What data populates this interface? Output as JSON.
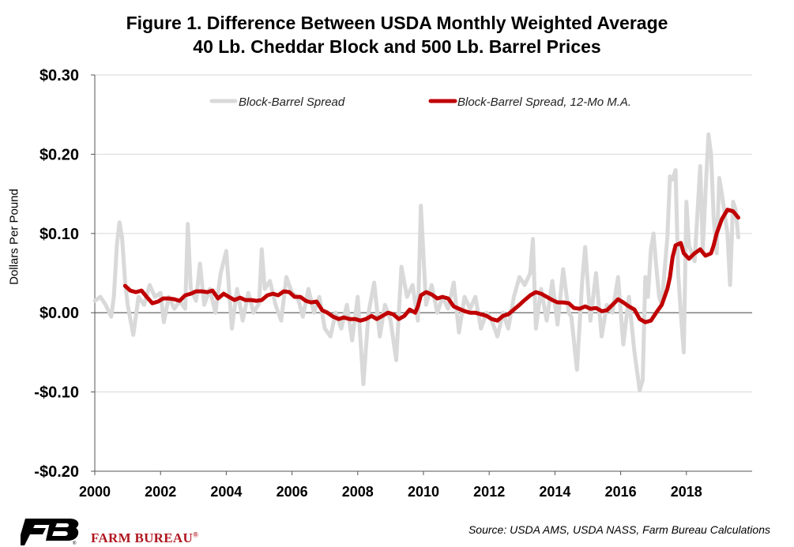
{
  "chart_data": {
    "type": "line",
    "title": [
      "Figure 1. Difference Between USDA Monthly Weighted Average",
      "40 Lb. Cheddar Block and 500 Lb. Barrel Prices"
    ],
    "ylabel": "Dollars Per Pound",
    "xlabel": "",
    "ylim": [
      -0.2,
      0.3
    ],
    "xlim": [
      2000,
      2020
    ],
    "y_ticks": [
      {
        "value": 0.3,
        "label": "$0.30"
      },
      {
        "value": 0.2,
        "label": "$0.20"
      },
      {
        "value": 0.1,
        "label": "$0.10"
      },
      {
        "value": 0.0,
        "label": "$0.00"
      },
      {
        "value": -0.1,
        "label": "-$0.10"
      },
      {
        "value": -0.2,
        "label": "-$0.20"
      }
    ],
    "x_ticks": [
      {
        "value": 2000,
        "label": "2000"
      },
      {
        "value": 2002,
        "label": "2002"
      },
      {
        "value": 2004,
        "label": "2004"
      },
      {
        "value": 2006,
        "label": "2006"
      },
      {
        "value": 2008,
        "label": "2008"
      },
      {
        "value": 2010,
        "label": "2010"
      },
      {
        "value": 2012,
        "label": "2012"
      },
      {
        "value": 2014,
        "label": "2014"
      },
      {
        "value": 2016,
        "label": "2016"
      },
      {
        "value": 2018,
        "label": "2018"
      }
    ],
    "grid": "horizontal",
    "legend_position": "top",
    "series": [
      {
        "name": "Block-Barrel Spread",
        "color": "#d9d9d9",
        "points": [
          [
            2000.0,
            0.015
          ],
          [
            2000.17,
            0.02
          ],
          [
            2000.33,
            0.01
          ],
          [
            2000.5,
            -0.005
          ],
          [
            2000.58,
            0.02
          ],
          [
            2000.67,
            0.085
          ],
          [
            2000.75,
            0.114
          ],
          [
            2000.83,
            0.095
          ],
          [
            2000.92,
            0.04
          ],
          [
            2001.0,
            0.01
          ],
          [
            2001.17,
            -0.028
          ],
          [
            2001.33,
            0.02
          ],
          [
            2001.5,
            0.01
          ],
          [
            2001.67,
            0.035
          ],
          [
            2001.83,
            0.02
          ],
          [
            2002.0,
            0.025
          ],
          [
            2002.1,
            -0.012
          ],
          [
            2002.25,
            0.02
          ],
          [
            2002.42,
            0.005
          ],
          [
            2002.58,
            0.015
          ],
          [
            2002.75,
            0.005
          ],
          [
            2002.83,
            0.112
          ],
          [
            2002.92,
            0.03
          ],
          [
            2003.08,
            0.015
          ],
          [
            2003.2,
            0.062
          ],
          [
            2003.33,
            0.01
          ],
          [
            2003.5,
            0.03
          ],
          [
            2003.67,
            0.0
          ],
          [
            2003.83,
            0.05
          ],
          [
            2004.0,
            0.078
          ],
          [
            2004.17,
            -0.02
          ],
          [
            2004.33,
            0.03
          ],
          [
            2004.5,
            -0.01
          ],
          [
            2004.67,
            0.025
          ],
          [
            2004.83,
            0.0
          ],
          [
            2005.0,
            0.012
          ],
          [
            2005.08,
            0.08
          ],
          [
            2005.17,
            0.03
          ],
          [
            2005.33,
            0.04
          ],
          [
            2005.5,
            0.01
          ],
          [
            2005.67,
            -0.01
          ],
          [
            2005.83,
            0.045
          ],
          [
            2006.0,
            0.025
          ],
          [
            2006.17,
            0.02
          ],
          [
            2006.33,
            -0.005
          ],
          [
            2006.5,
            0.03
          ],
          [
            2006.67,
            0.0
          ],
          [
            2006.83,
            0.02
          ],
          [
            2007.0,
            -0.02
          ],
          [
            2007.17,
            -0.03
          ],
          [
            2007.33,
            0.0
          ],
          [
            2007.5,
            -0.02
          ],
          [
            2007.67,
            0.01
          ],
          [
            2007.83,
            -0.035
          ],
          [
            2008.0,
            0.02
          ],
          [
            2008.17,
            -0.09
          ],
          [
            2008.33,
            0.0
          ],
          [
            2008.5,
            0.038
          ],
          [
            2008.67,
            -0.03
          ],
          [
            2008.83,
            0.01
          ],
          [
            2009.0,
            -0.01
          ],
          [
            2009.17,
            -0.06
          ],
          [
            2009.33,
            0.058
          ],
          [
            2009.5,
            0.02
          ],
          [
            2009.67,
            0.035
          ],
          [
            2009.83,
            -0.01
          ],
          [
            2009.92,
            0.135
          ],
          [
            2010.08,
            0.01
          ],
          [
            2010.25,
            0.035
          ],
          [
            2010.42,
            0.0
          ],
          [
            2010.58,
            0.02
          ],
          [
            2010.75,
            0.005
          ],
          [
            2010.92,
            0.038
          ],
          [
            2011.08,
            -0.025
          ],
          [
            2011.25,
            0.02
          ],
          [
            2011.42,
            0.005
          ],
          [
            2011.58,
            0.02
          ],
          [
            2011.75,
            -0.02
          ],
          [
            2011.92,
            0.0
          ],
          [
            2012.08,
            -0.01
          ],
          [
            2012.25,
            -0.03
          ],
          [
            2012.42,
            0.0
          ],
          [
            2012.58,
            -0.02
          ],
          [
            2012.75,
            0.02
          ],
          [
            2012.92,
            0.045
          ],
          [
            2013.08,
            0.035
          ],
          [
            2013.25,
            0.05
          ],
          [
            2013.33,
            0.093
          ],
          [
            2013.42,
            -0.02
          ],
          [
            2013.58,
            0.03
          ],
          [
            2013.75,
            -0.01
          ],
          [
            2013.92,
            0.04
          ],
          [
            2014.08,
            -0.015
          ],
          [
            2014.25,
            0.055
          ],
          [
            2014.42,
            0.0
          ],
          [
            2014.5,
            -0.005
          ],
          [
            2014.67,
            -0.072
          ],
          [
            2014.83,
            0.04
          ],
          [
            2014.92,
            0.083
          ],
          [
            2015.08,
            -0.01
          ],
          [
            2015.25,
            0.05
          ],
          [
            2015.42,
            -0.03
          ],
          [
            2015.58,
            0.01
          ],
          [
            2015.75,
            0.0
          ],
          [
            2015.92,
            0.045
          ],
          [
            2016.08,
            -0.04
          ],
          [
            2016.25,
            0.02
          ],
          [
            2016.42,
            -0.05
          ],
          [
            2016.58,
            -0.098
          ],
          [
            2016.67,
            -0.085
          ],
          [
            2016.75,
            0.045
          ],
          [
            2016.83,
            0.02
          ],
          [
            2016.92,
            0.08
          ],
          [
            2017.0,
            0.1
          ],
          [
            2017.08,
            0.06
          ],
          [
            2017.17,
            0.02
          ],
          [
            2017.25,
            0.01
          ],
          [
            2017.42,
            0.095
          ],
          [
            2017.5,
            0.172
          ],
          [
            2017.58,
            0.168
          ],
          [
            2017.67,
            0.18
          ],
          [
            2017.75,
            0.05
          ],
          [
            2017.83,
            0.0
          ],
          [
            2017.92,
            -0.05
          ],
          [
            2018.0,
            0.14
          ],
          [
            2018.08,
            0.085
          ],
          [
            2018.25,
            0.065
          ],
          [
            2018.42,
            0.185
          ],
          [
            2018.5,
            0.08
          ],
          [
            2018.58,
            0.15
          ],
          [
            2018.67,
            0.225
          ],
          [
            2018.75,
            0.2
          ],
          [
            2018.83,
            0.12
          ],
          [
            2018.92,
            0.075
          ],
          [
            2019.0,
            0.17
          ],
          [
            2019.08,
            0.15
          ],
          [
            2019.25,
            0.1
          ],
          [
            2019.33,
            0.035
          ],
          [
            2019.42,
            0.14
          ],
          [
            2019.5,
            0.13
          ],
          [
            2019.58,
            0.095
          ]
        ]
      },
      {
        "name": "Block-Barrel Spread, 12-Mo M.A.",
        "color": "#c00000",
        "points": [
          [
            2000.92,
            0.034
          ],
          [
            2001.08,
            0.028
          ],
          [
            2001.25,
            0.026
          ],
          [
            2001.42,
            0.028
          ],
          [
            2001.58,
            0.02
          ],
          [
            2001.75,
            0.012
          ],
          [
            2001.92,
            0.014
          ],
          [
            2002.08,
            0.018
          ],
          [
            2002.25,
            0.018
          ],
          [
            2002.42,
            0.017
          ],
          [
            2002.58,
            0.015
          ],
          [
            2002.75,
            0.022
          ],
          [
            2002.92,
            0.024
          ],
          [
            2003.08,
            0.027
          ],
          [
            2003.25,
            0.027
          ],
          [
            2003.42,
            0.026
          ],
          [
            2003.58,
            0.028
          ],
          [
            2003.75,
            0.018
          ],
          [
            2003.92,
            0.024
          ],
          [
            2004.08,
            0.02
          ],
          [
            2004.25,
            0.016
          ],
          [
            2004.42,
            0.019
          ],
          [
            2004.58,
            0.016
          ],
          [
            2004.75,
            0.016
          ],
          [
            2004.92,
            0.015
          ],
          [
            2005.08,
            0.016
          ],
          [
            2005.25,
            0.022
          ],
          [
            2005.42,
            0.024
          ],
          [
            2005.58,
            0.022
          ],
          [
            2005.75,
            0.027
          ],
          [
            2005.92,
            0.026
          ],
          [
            2006.08,
            0.02
          ],
          [
            2006.25,
            0.02
          ],
          [
            2006.42,
            0.015
          ],
          [
            2006.58,
            0.013
          ],
          [
            2006.75,
            0.014
          ],
          [
            2006.92,
            0.003
          ],
          [
            2007.08,
            0.0
          ],
          [
            2007.25,
            -0.005
          ],
          [
            2007.42,
            -0.008
          ],
          [
            2007.58,
            -0.006
          ],
          [
            2007.75,
            -0.008
          ],
          [
            2007.92,
            -0.008
          ],
          [
            2008.08,
            -0.01
          ],
          [
            2008.25,
            -0.008
          ],
          [
            2008.42,
            -0.004
          ],
          [
            2008.58,
            -0.008
          ],
          [
            2008.75,
            -0.004
          ],
          [
            2008.92,
            0.0
          ],
          [
            2009.08,
            -0.002
          ],
          [
            2009.25,
            -0.008
          ],
          [
            2009.42,
            -0.004
          ],
          [
            2009.58,
            0.004
          ],
          [
            2009.75,
            0.0
          ],
          [
            2009.83,
            0.008
          ],
          [
            2009.92,
            0.022
          ],
          [
            2010.08,
            0.026
          ],
          [
            2010.25,
            0.023
          ],
          [
            2010.42,
            0.018
          ],
          [
            2010.58,
            0.02
          ],
          [
            2010.75,
            0.018
          ],
          [
            2010.92,
            0.008
          ],
          [
            2011.08,
            0.005
          ],
          [
            2011.25,
            0.002
          ],
          [
            2011.42,
            0.0
          ],
          [
            2011.58,
            0.0
          ],
          [
            2011.75,
            -0.002
          ],
          [
            2011.92,
            -0.004
          ],
          [
            2012.08,
            -0.008
          ],
          [
            2012.25,
            -0.01
          ],
          [
            2012.42,
            -0.004
          ],
          [
            2012.58,
            -0.002
          ],
          [
            2012.75,
            0.004
          ],
          [
            2012.92,
            0.01
          ],
          [
            2013.08,
            0.016
          ],
          [
            2013.25,
            0.022
          ],
          [
            2013.42,
            0.026
          ],
          [
            2013.58,
            0.024
          ],
          [
            2013.75,
            0.02
          ],
          [
            2013.92,
            0.016
          ],
          [
            2014.08,
            0.013
          ],
          [
            2014.25,
            0.013
          ],
          [
            2014.42,
            0.012
          ],
          [
            2014.58,
            0.006
          ],
          [
            2014.75,
            0.005
          ],
          [
            2014.92,
            0.008
          ],
          [
            2015.08,
            0.005
          ],
          [
            2015.25,
            0.006
          ],
          [
            2015.42,
            0.002
          ],
          [
            2015.58,
            0.003
          ],
          [
            2015.75,
            0.01
          ],
          [
            2015.92,
            0.017
          ],
          [
            2016.08,
            0.013
          ],
          [
            2016.25,
            0.008
          ],
          [
            2016.42,
            0.004
          ],
          [
            2016.58,
            -0.008
          ],
          [
            2016.75,
            -0.012
          ],
          [
            2016.92,
            -0.01
          ],
          [
            2017.08,
            0.0
          ],
          [
            2017.25,
            0.01
          ],
          [
            2017.42,
            0.03
          ],
          [
            2017.5,
            0.045
          ],
          [
            2017.58,
            0.07
          ],
          [
            2017.67,
            0.085
          ],
          [
            2017.83,
            0.088
          ],
          [
            2017.92,
            0.075
          ],
          [
            2018.08,
            0.068
          ],
          [
            2018.25,
            0.075
          ],
          [
            2018.42,
            0.08
          ],
          [
            2018.58,
            0.072
          ],
          [
            2018.75,
            0.075
          ],
          [
            2018.83,
            0.085
          ],
          [
            2018.92,
            0.1
          ],
          [
            2019.08,
            0.118
          ],
          [
            2019.25,
            0.13
          ],
          [
            2019.42,
            0.128
          ],
          [
            2019.58,
            0.12
          ]
        ]
      }
    ],
    "legend": [
      "Block-Barrel Spread",
      "Block-Barrel Spread, 12-Mo M.A."
    ]
  },
  "footer": {
    "logo_text": "FARM BUREAU",
    "logo_mark": "®",
    "source": "Source: USDA AMS, USDA NASS, Farm Bureau Calculations"
  }
}
